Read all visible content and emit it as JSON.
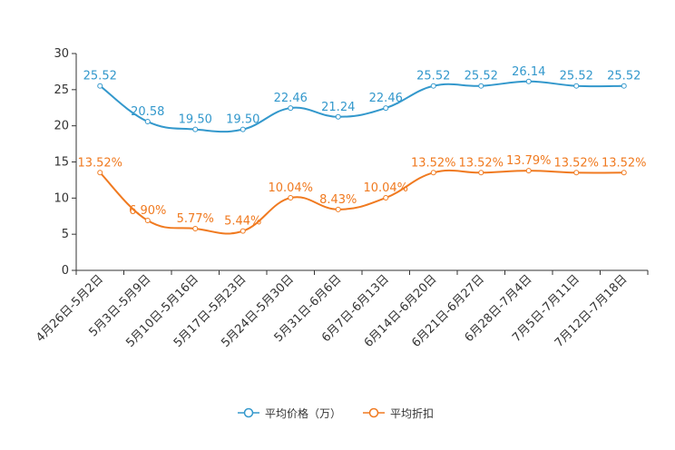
{
  "chart_data": {
    "type": "line",
    "categories": [
      "4月26日-5月2日",
      "5月3日-5月9日",
      "5月10日-5月16日",
      "5月17日-5月23日",
      "5月24日-5月30日",
      "5月31日-6月6日",
      "6月7日-6月13日",
      "6月14日-6月20日",
      "6月21日-6月27日",
      "6月28日-7月4日",
      "7月5日-7月11日",
      "7月12日-7月18日"
    ],
    "ylim": [
      0,
      30
    ],
    "yticks": [
      0,
      5,
      10,
      15,
      20,
      25,
      30
    ],
    "legend_position": "bottom-center",
    "smooth": true,
    "series": [
      {
        "name": "平均价格（万）",
        "color": "#3398cc",
        "values": [
          25.52,
          20.58,
          19.5,
          19.5,
          22.46,
          21.24,
          22.46,
          25.52,
          25.52,
          26.14,
          25.52,
          25.52
        ],
        "labels": [
          "25.52",
          "20.58",
          "19.50",
          "19.50",
          "22.46",
          "21.24",
          "22.46",
          "25.52",
          "25.52",
          "26.14",
          "25.52",
          "25.52"
        ]
      },
      {
        "name": "平均折扣",
        "color": "#f07a20",
        "values": [
          13.52,
          6.9,
          5.77,
          5.44,
          10.04,
          8.43,
          10.04,
          13.52,
          13.52,
          13.79,
          13.52,
          13.52
        ],
        "labels": [
          "13.52%",
          "6.90%",
          "5.77%",
          "5.44%",
          "10.04%",
          "8.43%",
          "10.04%",
          "13.52%",
          "13.52%",
          "13.79%",
          "13.52%",
          "13.52%"
        ]
      }
    ]
  }
}
